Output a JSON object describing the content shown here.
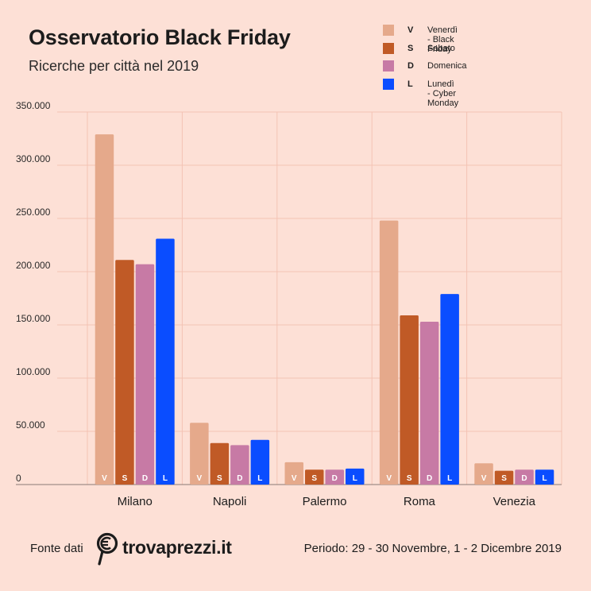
{
  "header": {
    "title": "Osservatorio Black Friday",
    "subtitle": "Ricerche per città nel 2019"
  },
  "chart_data": {
    "type": "bar",
    "categories": [
      "Milano",
      "Napoli",
      "Palermo",
      "Roma",
      "Venezia"
    ],
    "series": [
      {
        "name": "Venerdì - Black Friday",
        "code": "V",
        "color": "#e5a98b",
        "values": [
          329000,
          58000,
          21000,
          248000,
          20000
        ]
      },
      {
        "name": "Sabato",
        "code": "S",
        "color": "#c05a26",
        "values": [
          211000,
          39000,
          14000,
          159000,
          13000
        ]
      },
      {
        "name": "Domenica",
        "code": "D",
        "color": "#c77aa5",
        "values": [
          207000,
          37000,
          14000,
          153000,
          14000
        ]
      },
      {
        "name": "Lunedì - Cyber Monday",
        "code": "L",
        "color": "#0a4dff",
        "values": [
          231000,
          42000,
          15000,
          179000,
          14000
        ]
      }
    ],
    "ylim": [
      0,
      350000
    ],
    "yticks": [
      0,
      50000,
      100000,
      150000,
      200000,
      250000,
      300000,
      350000
    ],
    "ytick_labels": [
      "0",
      "50.000",
      "100.000",
      "150.000",
      "200.000",
      "250.000",
      "300.000",
      "350.000"
    ],
    "xlabel": "",
    "ylabel": "",
    "grid": true,
    "legend_position": "top-right"
  },
  "footer": {
    "source_label": "Fonte dati",
    "brand": "trovaprezzi.it",
    "period": "Periodo: 29 - 30 Novembre, 1 - 2 Dicembre 2019"
  }
}
